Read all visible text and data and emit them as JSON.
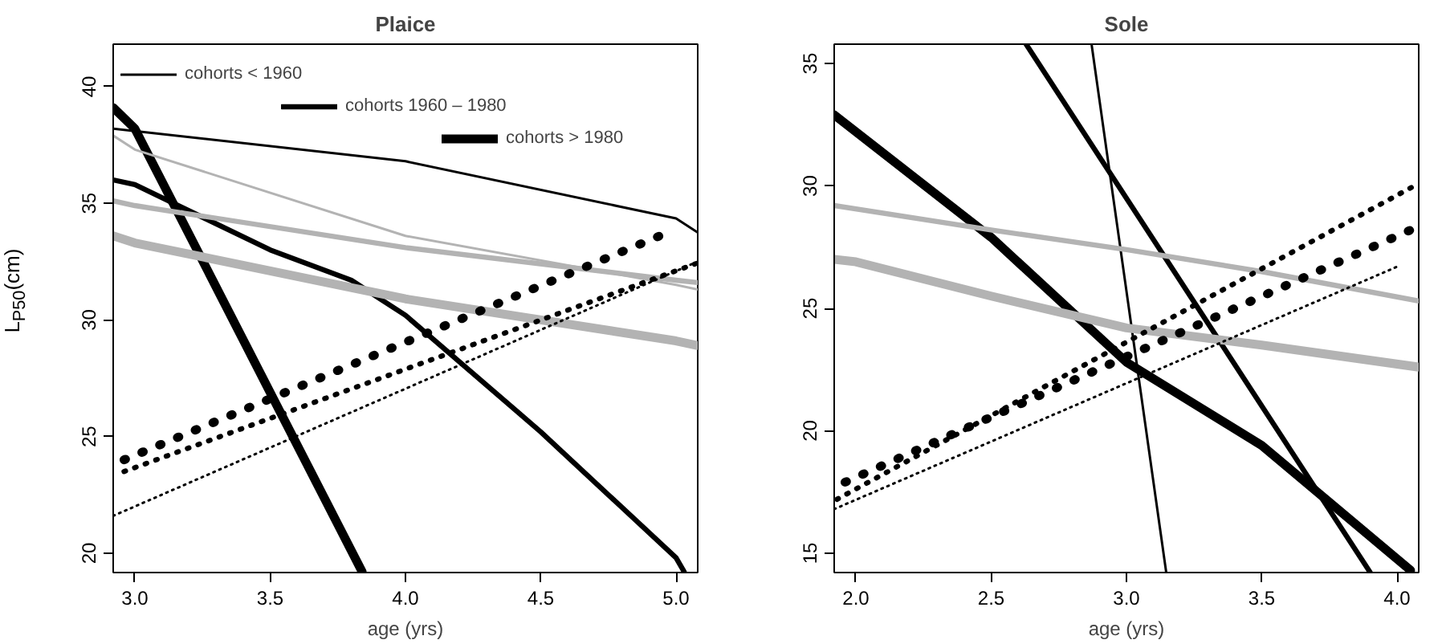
{
  "chart_data": [
    {
      "type": "line",
      "title": "Plaice",
      "xlabel": "age (yrs)",
      "ylabel": "L$_{P50}$(cm)",
      "xlim": [
        2.92,
        5.08
      ],
      "ylim": [
        19.17,
        41.82
      ],
      "xticks": [
        {
          "value": 3,
          "label": "3.0"
        },
        {
          "value": 3.5,
          "label": "3.5"
        },
        {
          "value": 4,
          "label": "4.0"
        },
        {
          "value": 4.5,
          "label": "4.5"
        },
        {
          "value": 5,
          "label": "5.0"
        }
      ],
      "yticks": [
        20,
        25,
        30,
        35,
        40
      ],
      "grid": false,
      "legend": "top",
      "series": [
        {
          "name": "cohorts < 1960",
          "color": "#000000",
          "line_style": "solid",
          "x": [
            2.92,
            4.0,
            5.0,
            5.08
          ],
          "values": [
            38.2,
            36.8,
            34.35,
            33.75
          ]
        },
        {
          "name": "cohorts 1960 – 1980",
          "color": "#000000",
          "line_style": "solid",
          "x": [
            2.92,
            3.0,
            3.5,
            3.8,
            4.0,
            4.5,
            5.0,
            5.03
          ],
          "values": [
            36.0,
            35.8,
            33.0,
            31.7,
            30.2,
            25.2,
            19.8,
            19.2
          ]
        },
        {
          "name": "cohorts > 1980",
          "color": "#000000",
          "line_style": "solid",
          "x": [
            2.92,
            3.0,
            3.84
          ],
          "values": [
            39.1,
            38.2,
            19.2
          ]
        },
        {
          "color": "#b3b3b3",
          "line_style": "solid",
          "x": [
            2.92,
            3.0,
            4.0,
            5.0,
            5.08
          ],
          "values": [
            37.9,
            37.3,
            33.6,
            31.5,
            31.3
          ]
        },
        {
          "color": "#b3b3b3",
          "line_style": "solid",
          "x": [
            2.92,
            3.0,
            4.0,
            5.0,
            5.08
          ],
          "values": [
            35.1,
            34.9,
            33.1,
            31.7,
            31.6
          ]
        },
        {
          "color": "#b3b3b3",
          "line_style": "solid",
          "x": [
            2.92,
            3.0,
            4.0,
            5.0,
            5.08
          ],
          "values": [
            33.6,
            33.3,
            30.9,
            29.1,
            28.9
          ]
        },
        {
          "color": "#000000",
          "line_style": "dotted",
          "x": [
            2.92,
            5.08
          ],
          "values": [
            21.6,
            32.5
          ]
        },
        {
          "color": "#000000",
          "line_style": "dotted",
          "x": [
            2.96,
            5.07
          ],
          "values": [
            23.5,
            32.4
          ]
        },
        {
          "color": "#000000",
          "line_style": "dotted",
          "x": [
            2.96,
            4.96
          ],
          "values": [
            24.0,
            33.7
          ]
        }
      ]
    },
    {
      "type": "line",
      "title": "Sole",
      "xlabel": "age (yrs)",
      "xlim": [
        1.92,
        4.08
      ],
      "ylim": [
        14.21,
        35.79
      ],
      "xticks": [
        {
          "value": 2,
          "label": "2.0"
        },
        {
          "value": 2.5,
          "label": "2.5"
        },
        {
          "value": 3,
          "label": "3.0"
        },
        {
          "value": 3.5,
          "label": "3.5"
        },
        {
          "value": 4,
          "label": "4.0"
        }
      ],
      "yticks": [
        15,
        20,
        25,
        30,
        35
      ],
      "grid": false,
      "series": [
        {
          "color": "#000000",
          "line_style": "solid",
          "x": [
            2.871,
            3.147
          ],
          "values": [
            35.79,
            14.21
          ]
        },
        {
          "color": "#000000",
          "line_style": "solid",
          "x": [
            2.629,
            3.901
          ],
          "values": [
            35.79,
            14.21
          ]
        },
        {
          "color": "#000000",
          "line_style": "solid",
          "x": [
            1.92,
            2.5,
            3.0,
            3.5,
            4.05
          ],
          "values": [
            32.9,
            27.9,
            22.8,
            19.4,
            14.3
          ]
        },
        {
          "color": "#b3b3b3",
          "line_style": "solid",
          "x": [
            1.92,
            2.5,
            3.0,
            3.5,
            4.08
          ],
          "values": [
            29.2,
            28.2,
            27.4,
            26.5,
            25.3
          ]
        },
        {
          "color": "#b3b3b3",
          "line_style": "solid",
          "x": [
            1.92,
            2.0,
            2.5,
            3.0,
            3.5,
            4.08
          ],
          "values": [
            27.0,
            26.9,
            25.5,
            24.2,
            23.5,
            22.6
          ]
        },
        {
          "color": "#000000",
          "line_style": "dotted",
          "x": [
            1.92,
            4.0
          ],
          "values": [
            16.8,
            26.7
          ]
        },
        {
          "color": "#000000",
          "line_style": "dotted",
          "x": [
            1.93,
            4.08
          ],
          "values": [
            17.2,
            30.1
          ]
        },
        {
          "color": "#000000",
          "line_style": "dotted",
          "x": [
            1.96,
            4.07
          ],
          "values": [
            17.9,
            28.3
          ]
        }
      ]
    }
  ]
}
